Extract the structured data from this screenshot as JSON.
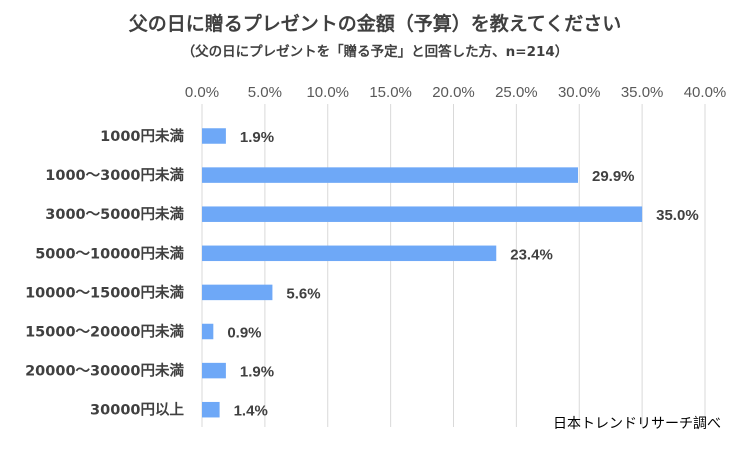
{
  "chart_data": {
    "type": "bar",
    "orientation": "horizontal",
    "title": "父の日に贈るプレゼントの金額（予算）を教えてください",
    "subtitle": "（父の日にプレゼントを「贈る予定」と回答した方、n=214）",
    "categories": [
      "1000円未満",
      "1000～3000円未満",
      "3000～5000円未満",
      "5000～10000円未満",
      "10000～15000円未満",
      "15000～20000円未満",
      "20000～30000円未満",
      "30000円以上"
    ],
    "values": [
      1.9,
      29.9,
      35.0,
      23.4,
      5.6,
      0.9,
      1.9,
      1.4
    ],
    "data_labels": [
      "1.9%",
      "29.9%",
      "35.0%",
      "23.4%",
      "5.6%",
      "0.9%",
      "1.9%",
      "1.4%"
    ],
    "xlim": [
      0,
      40
    ],
    "x_ticks": [
      "0.0%",
      "5.0%",
      "10.0%",
      "15.0%",
      "20.0%",
      "25.0%",
      "30.0%",
      "35.0%",
      "40.0%"
    ],
    "x_axis_position": "top",
    "grid": true,
    "legend": "none",
    "bar_color": "#6ea8f7",
    "source_note": "日本トレンドリサーチ調べ"
  }
}
